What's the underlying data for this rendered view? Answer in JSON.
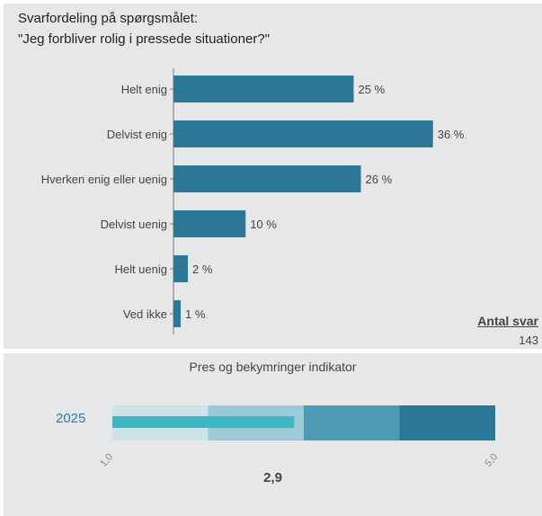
{
  "chart_data": [
    {
      "type": "bar",
      "orientation": "horizontal",
      "title": "Svarfordeling på spørgsmålet:",
      "subtitle": "\"Jeg forbliver rolig i pressede situationer?\"",
      "categories": [
        "Helt enig",
        "Delvist enig",
        "Hverken enig eller uenig",
        "Delvist uenig",
        "Helt uenig",
        "Ved ikke"
      ],
      "values": [
        25,
        36,
        26,
        10,
        2,
        1
      ],
      "data_labels": [
        "25 %",
        "36 %",
        "26 %",
        "10 %",
        "2 %",
        "1 %"
      ],
      "xlim": [
        0,
        40
      ],
      "grid": false,
      "bar_color": "#2a7896",
      "footer": {
        "label": "Antal svar",
        "value": "143"
      }
    },
    {
      "type": "gauge",
      "title": "Pres og bekymringer indikator",
      "row_label": "2025",
      "value": 2.9,
      "value_label": "2,9",
      "range": [
        1.0,
        5.0
      ],
      "tick_labels": [
        "1,0",
        "5,0"
      ],
      "bands": [
        {
          "from": 1.0,
          "to": 2.0,
          "color": "#cde3ea"
        },
        {
          "from": 2.0,
          "to": 3.0,
          "color": "#9ccad8"
        },
        {
          "from": 3.0,
          "to": 4.0,
          "color": "#4d9ab5"
        },
        {
          "from": 4.0,
          "to": 5.0,
          "color": "#2a7896"
        }
      ],
      "bar_color": "#3db8c4"
    }
  ]
}
